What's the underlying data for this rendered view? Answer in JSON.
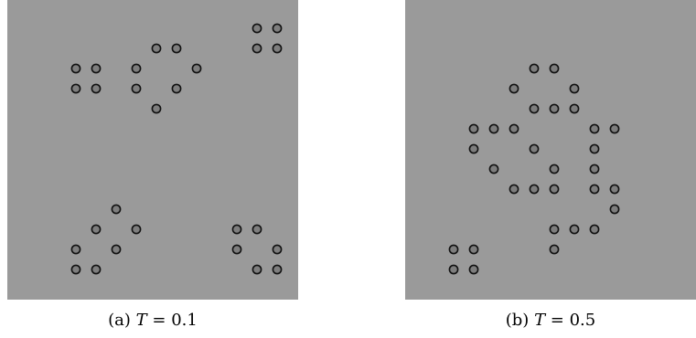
{
  "panels": [
    {
      "id": "a",
      "caption": {
        "label": "(a)",
        "variable": "T",
        "equals": " = ",
        "value": "0.1"
      },
      "grid_step": 22,
      "cells": [
        [
          12,
          1
        ],
        [
          13,
          1
        ],
        [
          12,
          2
        ],
        [
          13,
          2
        ],
        [
          7,
          2
        ],
        [
          8,
          2
        ],
        [
          3,
          3
        ],
        [
          4,
          3
        ],
        [
          6,
          3
        ],
        [
          9,
          3
        ],
        [
          3,
          4
        ],
        [
          4,
          4
        ],
        [
          6,
          4
        ],
        [
          8,
          4
        ],
        [
          7,
          5
        ],
        [
          5,
          10
        ],
        [
          4,
          11
        ],
        [
          6,
          11
        ],
        [
          3,
          12
        ],
        [
          5,
          12
        ],
        [
          3,
          13
        ],
        [
          4,
          13
        ],
        [
          11,
          11
        ],
        [
          12,
          11
        ],
        [
          11,
          12
        ],
        [
          13,
          12
        ],
        [
          12,
          13
        ],
        [
          13,
          13
        ]
      ]
    },
    {
      "id": "b",
      "caption": {
        "label": "(b)",
        "variable": "T",
        "equals": " = ",
        "value": "0.5"
      },
      "grid_step": 22,
      "cells": [
        [
          6,
          3
        ],
        [
          7,
          3
        ],
        [
          5,
          4
        ],
        [
          8,
          4
        ],
        [
          6,
          5
        ],
        [
          7,
          5
        ],
        [
          8,
          5
        ],
        [
          3,
          6
        ],
        [
          4,
          6
        ],
        [
          5,
          6
        ],
        [
          9,
          6
        ],
        [
          10,
          6
        ],
        [
          3,
          7
        ],
        [
          6,
          7
        ],
        [
          9,
          7
        ],
        [
          4,
          8
        ],
        [
          7,
          8
        ],
        [
          9,
          8
        ],
        [
          5,
          9
        ],
        [
          6,
          9
        ],
        [
          7,
          9
        ],
        [
          9,
          9
        ],
        [
          10,
          9
        ],
        [
          10,
          10
        ],
        [
          7,
          11
        ],
        [
          8,
          11
        ],
        [
          9,
          11
        ],
        [
          2,
          12
        ],
        [
          3,
          12
        ],
        [
          7,
          12
        ],
        [
          2,
          13
        ],
        [
          3,
          13
        ]
      ]
    }
  ],
  "colors": {
    "panel_background": "#9a9a9a",
    "cell_fill": "#7e7e7e",
    "cell_stroke": "#111111"
  }
}
